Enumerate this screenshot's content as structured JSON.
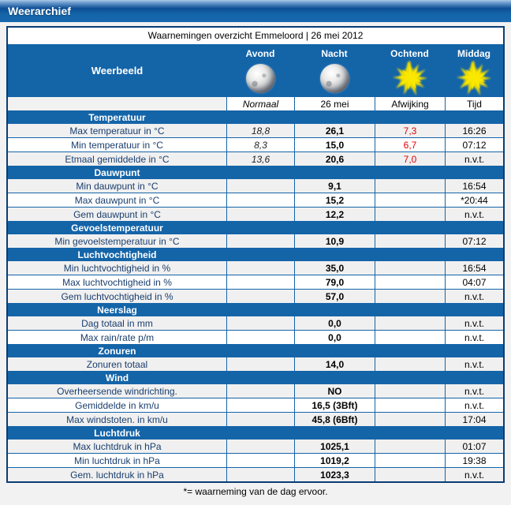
{
  "header": {
    "title": "Weerarchief"
  },
  "caption": "Waarnemingen overzicht Emmeloord | 26 mei 2012",
  "weerbeeld": {
    "label": "Weerbeeld",
    "periods": [
      {
        "label": "Avond",
        "icon": "moon-icon"
      },
      {
        "label": "Nacht",
        "icon": "moon-icon"
      },
      {
        "label": "Ochtend",
        "icon": "sun-icon"
      },
      {
        "label": "Middag",
        "icon": "sun-icon"
      }
    ]
  },
  "columns": [
    "Normaal",
    "26 mei",
    "Afwijking",
    "Tijd"
  ],
  "sections": [
    {
      "title": "Temperatuur",
      "rows": [
        {
          "label": "Max temperatuur in °C",
          "normaal": "18,8",
          "value": "26,1",
          "afwijking": "7,3",
          "tijd": "16:26"
        },
        {
          "label": "Min temperatuur in °C",
          "normaal": "8,3",
          "value": "15,0",
          "afwijking": "6,7",
          "tijd": "07:12"
        },
        {
          "label": "Etmaal gemiddelde in °C",
          "normaal": "13,6",
          "value": "20,6",
          "afwijking": "7,0",
          "tijd": "n.v.t."
        }
      ]
    },
    {
      "title": "Dauwpunt",
      "rows": [
        {
          "label": "Min dauwpunt in °C",
          "normaal": "",
          "value": "9,1",
          "afwijking": "",
          "tijd": "16:54"
        },
        {
          "label": "Max dauwpunt in °C",
          "normaal": "",
          "value": "15,2",
          "afwijking": "",
          "tijd": "*20:44"
        },
        {
          "label": "Gem dauwpunt in °C",
          "normaal": "",
          "value": "12,2",
          "afwijking": "",
          "tijd": "n.v.t."
        }
      ]
    },
    {
      "title": "Gevoelstemperatuur",
      "rows": [
        {
          "label": "Min gevoelstemperatuur in °C",
          "normaal": "",
          "value": "10,9",
          "afwijking": "",
          "tijd": "07:12"
        }
      ]
    },
    {
      "title": "Luchtvochtigheid",
      "rows": [
        {
          "label": "Min luchtvochtigheid in %",
          "normaal": "",
          "value": "35,0",
          "afwijking": "",
          "tijd": "16:54"
        },
        {
          "label": "Max luchtvochtigheid in %",
          "normaal": "",
          "value": "79,0",
          "afwijking": "",
          "tijd": "04:07"
        },
        {
          "label": "Gem luchtvochtigheid in %",
          "normaal": "",
          "value": "57,0",
          "afwijking": "",
          "tijd": "n.v.t."
        }
      ]
    },
    {
      "title": "Neerslag",
      "rows": [
        {
          "label": "Dag totaal in mm",
          "normaal": "",
          "value": "0,0",
          "afwijking": "",
          "tijd": "n.v.t."
        },
        {
          "label": "Max rain/rate p/m",
          "normaal": "",
          "value": "0,0",
          "afwijking": "",
          "tijd": "n.v.t."
        }
      ]
    },
    {
      "title": "Zonuren",
      "rows": [
        {
          "label": "Zonuren totaal",
          "normaal": "",
          "value": "14,0",
          "afwijking": "",
          "tijd": "n.v.t."
        }
      ]
    },
    {
      "title": "Wind",
      "rows": [
        {
          "label": "Overheersende windrichting.",
          "normaal": "",
          "value": "NO",
          "afwijking": "",
          "tijd": "n.v.t."
        },
        {
          "label": "Gemiddelde in km/u",
          "normaal": "",
          "value": "16,5 (3Bft)",
          "afwijking": "",
          "tijd": "n.v.t."
        },
        {
          "label": "Max windstoten. in km/u",
          "normaal": "",
          "value": "45,8 (6Bft)",
          "afwijking": "",
          "tijd": "17:04"
        }
      ]
    },
    {
      "title": "Luchtdruk",
      "rows": [
        {
          "label": "Max luchtdruk in hPa",
          "normaal": "",
          "value": "1025,1",
          "afwijking": "",
          "tijd": "01:07"
        },
        {
          "label": "Min luchtdruk in hPa",
          "normaal": "",
          "value": "1019,2",
          "afwijking": "",
          "tijd": "19:38"
        },
        {
          "label": "Gem. luchtdruk in hPa",
          "normaal": "",
          "value": "1023,3",
          "afwijking": "",
          "tijd": "n.v.t."
        }
      ]
    }
  ],
  "footnote": "*= waarneming van de dag ervoor.",
  "colors": {
    "header_blue": "#1464a8",
    "border_navy": "#0a3d75",
    "afwijking_red": "#e60000",
    "row_alt_gray": "#f0f0f0",
    "sun_yellow": "#f7e400"
  }
}
